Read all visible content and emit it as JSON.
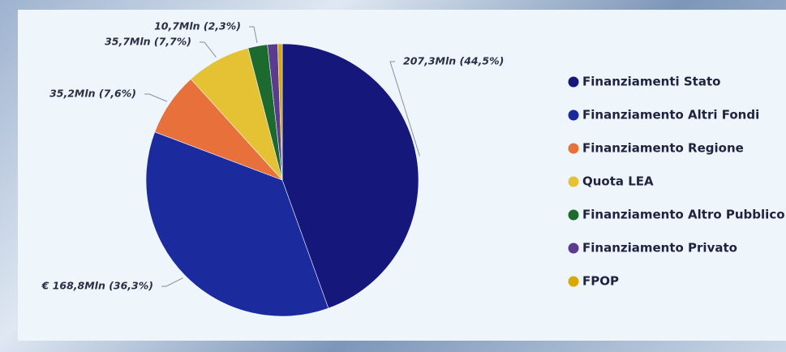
{
  "chart_data": {
    "type": "pie",
    "categories": [
      "Finanziamenti Stato",
      "Finanziamento Altri Fondi",
      "Finanziamento Regione",
      "Quota LEA",
      "Finanziamento Altro Pubblico",
      "Finanziamento Privato",
      "FPOP"
    ],
    "values": [
      207.3,
      168.8,
      35.2,
      35.7,
      10.7,
      5.6,
      2.5
    ],
    "value_labels": [
      "207,3Mln (44,5%)",
      "€ 168,8Mln (36,3%)",
      "35,2Mln (7,6%)",
      "35,7Mln (7,7%)",
      "10,7Mln (2,3%)",
      null,
      null
    ],
    "colors": [
      "#15187a",
      "#1b2b9e",
      "#e8703a",
      "#e5c233",
      "#1c6a2d",
      "#5a3b90",
      "#d8a900"
    ],
    "legend": "right"
  }
}
